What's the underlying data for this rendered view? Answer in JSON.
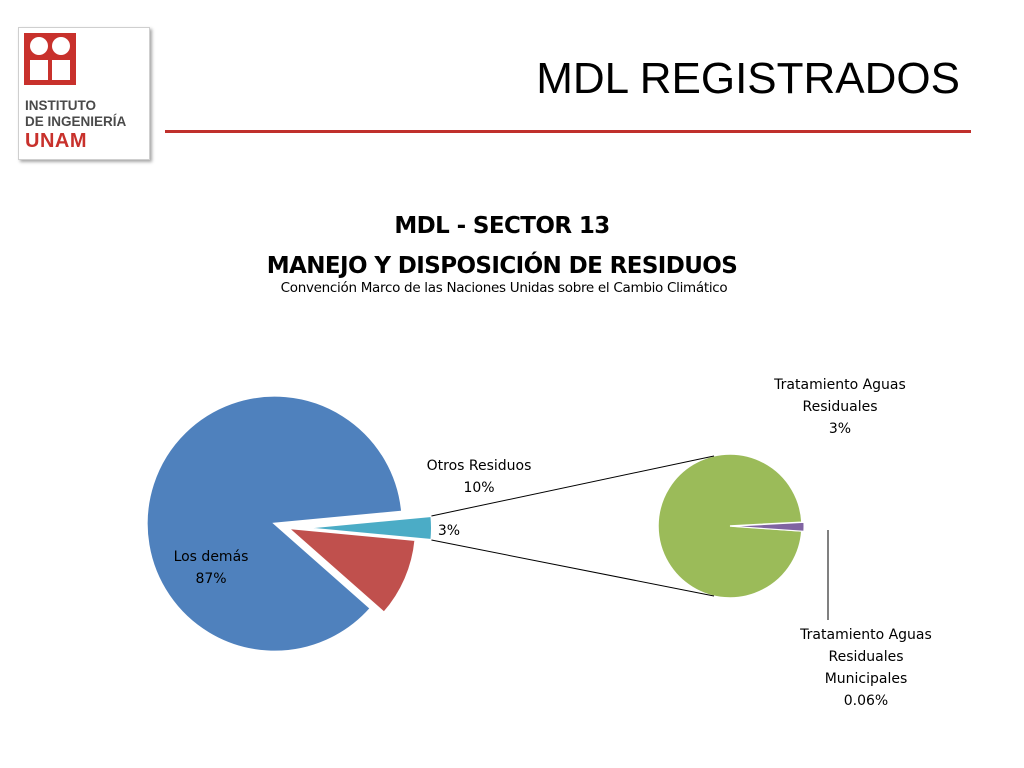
{
  "slide": {
    "title": "MDL REGISTRADOS",
    "logo": {
      "line1": "INSTITUTO",
      "line2": "DE INGENIERÍA",
      "line3": "UNAM"
    }
  },
  "colors": {
    "accent_rule": "#c0302c",
    "los_demas": "#4f81bd",
    "otros_residuos": "#c0504d",
    "tratamiento_aguas": "#4bacc6",
    "secondary_tratamiento": "#9bbb59",
    "secondary_municipales": "#8064a2"
  },
  "chart_data": {
    "type": "pie",
    "subtype": "pie-of-pie",
    "title": "MDL - SECTOR 13",
    "title_line2": "MANEJO Y DISPOSICIÓN DE RESIDUOS",
    "subtitle": "Convención Marco de las Naciones Unidas sobre el Cambio Climático",
    "primary": [
      {
        "name": "Los demás",
        "value": 87,
        "label": "87%",
        "color": "#4f81bd"
      },
      {
        "name": "Otros Residuos",
        "value": 10,
        "label": "10%",
        "color": "#c0504d"
      },
      {
        "name": "",
        "value": 3,
        "label": "3%",
        "color": "#4bacc6",
        "expands_to_secondary": true
      }
    ],
    "secondary": [
      {
        "name": "Tratamiento Aguas Residuales",
        "name_lines": [
          "Tratamiento Aguas",
          "Residuales"
        ],
        "value": 3,
        "label": "3%",
        "color": "#9bbb59"
      },
      {
        "name": "Tratamiento Aguas Residuales Municipales",
        "name_lines": [
          "Tratamiento Aguas",
          "Residuales",
          "Municipales"
        ],
        "value": 0.06,
        "label": "0.06%",
        "color": "#8064a2"
      }
    ]
  }
}
